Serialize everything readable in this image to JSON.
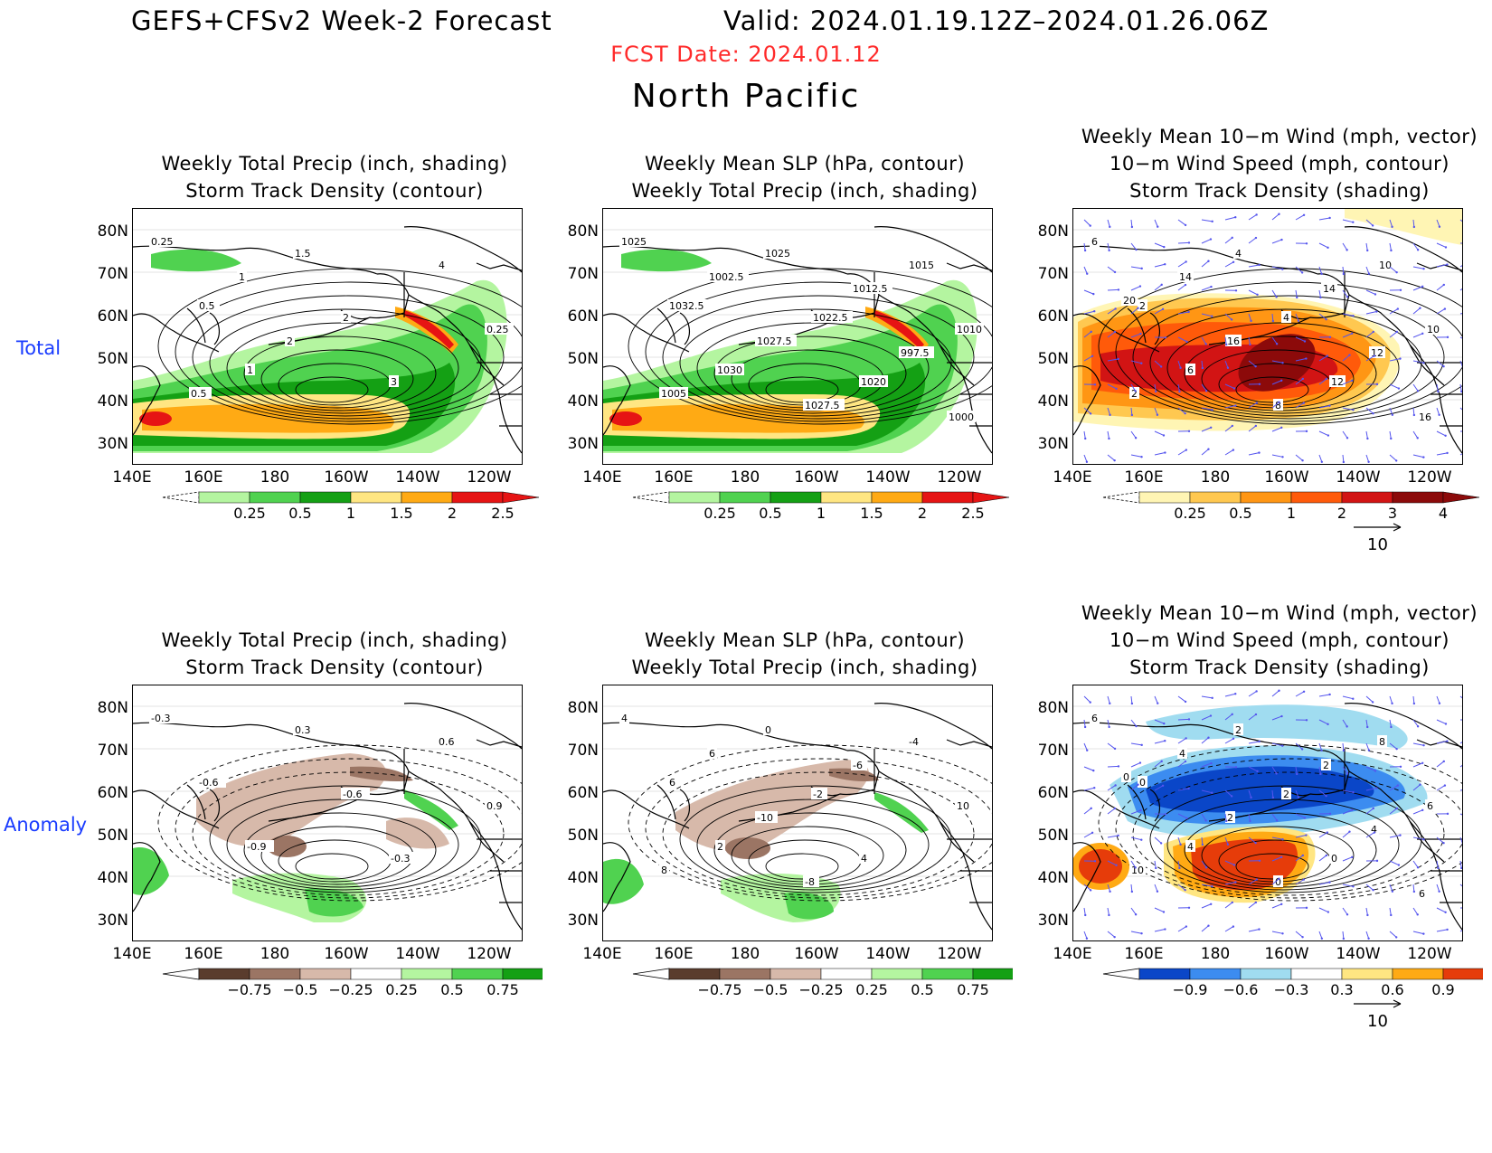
{
  "header": {
    "title": "GEFS+CFSv2 Week-2 Forecast",
    "valid": "Valid: 2024.01.19.12Z–2024.01.26.06Z",
    "fcst_date": "FCST Date: 2024.01.12",
    "region": "North Pacific"
  },
  "rows": {
    "total": "Total",
    "anomaly": "Anomaly"
  },
  "axes": {
    "lat": [
      "80N",
      "70N",
      "60N",
      "50N",
      "40N",
      "30N"
    ],
    "lon": [
      "140E",
      "160E",
      "180",
      "160W",
      "140W",
      "120W"
    ]
  },
  "panels": [
    {
      "id": "total-precip-storm",
      "title": [
        "Weekly Total Precip (inch, shading)",
        "Storm Track Density (contour)"
      ],
      "field": "precip",
      "cbar_labels": [
        "0.25",
        "0.5",
        "1",
        "1.5",
        "2",
        "2.5"
      ],
      "contour_labels": [
        "0.25",
        "0.5",
        "1",
        "1.5",
        "2",
        "3",
        "4",
        "0.25",
        "0.5",
        "1",
        "2"
      ]
    },
    {
      "id": "total-slp-precip",
      "title": [
        "Weekly Mean SLP (hPa, contour)",
        "Weekly Total Precip (inch, shading)"
      ],
      "field": "precip",
      "cbar_labels": [
        "0.25",
        "0.5",
        "1",
        "1.5",
        "2",
        "2.5"
      ],
      "contour_labels": [
        "1025",
        "1032.5",
        "1030",
        "1025",
        "1022.5",
        "1020",
        "1015",
        "1010",
        "1005",
        "1002.5",
        "1027.5",
        "1027.5",
        "1012.5",
        "997.5",
        "1000"
      ]
    },
    {
      "id": "total-wind-storm",
      "title": [
        "Weekly Mean 10−m Wind (mph, vector)",
        "10−m Wind Speed (mph, contour)",
        "Storm Track Density (shading)"
      ],
      "field": "storm",
      "cbar_labels": [
        "0.25",
        "0.5",
        "1",
        "2",
        "3",
        "4"
      ],
      "vector_ref": "10",
      "contour_labels": [
        "6",
        "2",
        "6",
        "4",
        "4",
        "12",
        "10",
        "10",
        "2",
        "14",
        "16",
        "8",
        "14",
        "12",
        "16",
        "20"
      ]
    },
    {
      "id": "anom-precip-storm",
      "title": [
        "Weekly Total Precip (inch, shading)",
        "Storm Track Density (contour)"
      ],
      "field": "precip-anom",
      "cbar_labels": [
        "−0.75",
        "−0.5",
        "−0.25",
        "0.25",
        "0.5",
        "0.75"
      ],
      "contour_labels": [
        "-0.3",
        "-0.6",
        "-0.9",
        "0.3",
        "-0.6",
        "-0.3",
        "0.6",
        "0.9"
      ]
    },
    {
      "id": "anom-slp-precip",
      "title": [
        "Weekly Mean SLP (hPa, contour)",
        "Weekly Total Precip (inch, shading)"
      ],
      "field": "precip-anom2",
      "cbar_labels": [
        "−0.75",
        "−0.5",
        "−0.25",
        "0.25",
        "0.5",
        "0.75"
      ],
      "contour_labels": [
        "4",
        "6",
        "2",
        "0",
        "-2",
        "4",
        "-4",
        "10",
        "8",
        "6",
        "-10",
        "-8",
        "-6"
      ]
    },
    {
      "id": "anom-wind-storm",
      "title": [
        "Weekly Mean 10−m Wind (mph, vector)",
        "10−m Wind Speed (mph, contour)",
        "Storm Track Density (shading)"
      ],
      "field": "storm-anom",
      "cbar_labels": [
        "−0.9",
        "−0.6",
        "−0.3",
        "0.3",
        "0.6",
        "0.9"
      ],
      "vector_ref": "10",
      "contour_labels": [
        "6",
        "0",
        "4",
        "2",
        "2",
        "0",
        "8",
        "6",
        "10",
        "4",
        "2",
        "0",
        "2",
        "4",
        "6",
        "0"
      ]
    }
  ],
  "colors": {
    "precip": [
      "#b4f5a0",
      "#50d250",
      "#14a014",
      "#ffe682",
      "#ffaa14",
      "#e61414"
    ],
    "storm": [
      "#fff5b4",
      "#ffc850",
      "#ff9614",
      "#ff5a0a",
      "#d21414",
      "#8c0a0a"
    ],
    "anom_neg": [
      "#5a3c2d",
      "#9b7564",
      "#d7b9aa"
    ],
    "anom_pos": [
      "#b4f5a0",
      "#50d250",
      "#14a014"
    ],
    "storm_neg": [
      "#0a46c8",
      "#3c8cf0",
      "#a0dcf0"
    ],
    "storm_pos": [
      "#ffe682",
      "#ffaa14",
      "#e63c0a"
    ],
    "vector": "#5555ee",
    "fcst": "#ff2a2a",
    "rowlabel": "#1a3cff"
  }
}
